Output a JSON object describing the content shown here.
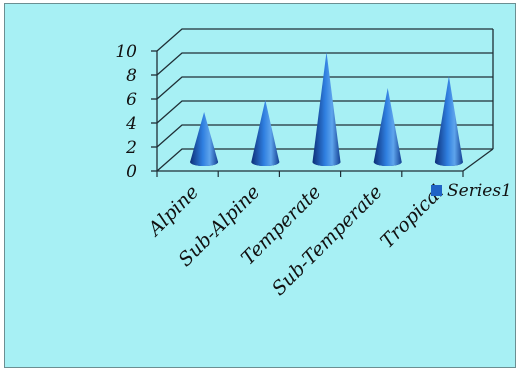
{
  "chart_data": {
    "type": "bar",
    "bar_shape": "cone",
    "three_d": true,
    "categories": [
      "Alpine",
      "Sub-Alpine",
      "Temperate",
      "Sub-Temperate",
      "Tropical"
    ],
    "series": [
      {
        "name": "Series1",
        "values": [
          4,
          5,
          9,
          6,
          7
        ]
      }
    ],
    "ylim": [
      0,
      10
    ],
    "yticks": [
      "0",
      "2",
      "4",
      "6",
      "8",
      "10"
    ],
    "grid": true,
    "legend_position": "right",
    "colors": {
      "background": "#a7f0f4",
      "series": "#1f63c6",
      "series_light": "#5ea4ec",
      "series_dark": "#0d2f78"
    }
  }
}
